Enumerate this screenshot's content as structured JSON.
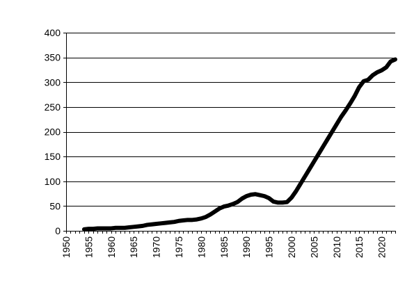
{
  "chart_data": {
    "type": "line",
    "title": "",
    "xlabel": "",
    "ylabel": "",
    "xlim": [
      1950,
      2023
    ],
    "ylim": [
      0,
      400
    ],
    "grid": "horizontal",
    "legend": "none",
    "line_color": "#000000",
    "y_ticks": [
      0,
      50,
      100,
      150,
      200,
      250,
      300,
      350,
      400
    ],
    "x_ticks": [
      1950,
      1955,
      1960,
      1965,
      1970,
      1975,
      1980,
      1985,
      1990,
      1995,
      2000,
      2005,
      2010,
      2015,
      2020
    ],
    "series": [
      {
        "x": [
          1954,
          1955,
          1956,
          1957,
          1958,
          1959,
          1960,
          1961,
          1962,
          1963,
          1964,
          1965,
          1966,
          1967,
          1968,
          1969,
          1970,
          1971,
          1972,
          1973,
          1974,
          1975,
          1976,
          1977,
          1978,
          1979,
          1980,
          1981,
          1982,
          1983,
          1984,
          1985,
          1986,
          1987,
          1988,
          1989,
          1990,
          1991,
          1992,
          1993,
          1994,
          1995,
          1996,
          1997,
          1998,
          1999,
          2000,
          2001,
          2002,
          2003,
          2004,
          2005,
          2006,
          2007,
          2008,
          2009,
          2010,
          2011,
          2012,
          2013,
          2014,
          2015,
          2016,
          2017,
          2018,
          2019,
          2020,
          2021,
          2022,
          2023
        ],
        "y": [
          3,
          4,
          4,
          5,
          5,
          5,
          5,
          6,
          6,
          6,
          7,
          8,
          9,
          10,
          12,
          13,
          14,
          15,
          16,
          17,
          18,
          20,
          21,
          22,
          22,
          23,
          25,
          28,
          33,
          39,
          45,
          49,
          51,
          54,
          58,
          65,
          70,
          73,
          74,
          72,
          70,
          66,
          59,
          57,
          57,
          58,
          67,
          80,
          95,
          110,
          125,
          140,
          155,
          170,
          185,
          200,
          215,
          230,
          243,
          257,
          272,
          290,
          302,
          305,
          314,
          320,
          324,
          330,
          342,
          346
        ]
      }
    ]
  }
}
